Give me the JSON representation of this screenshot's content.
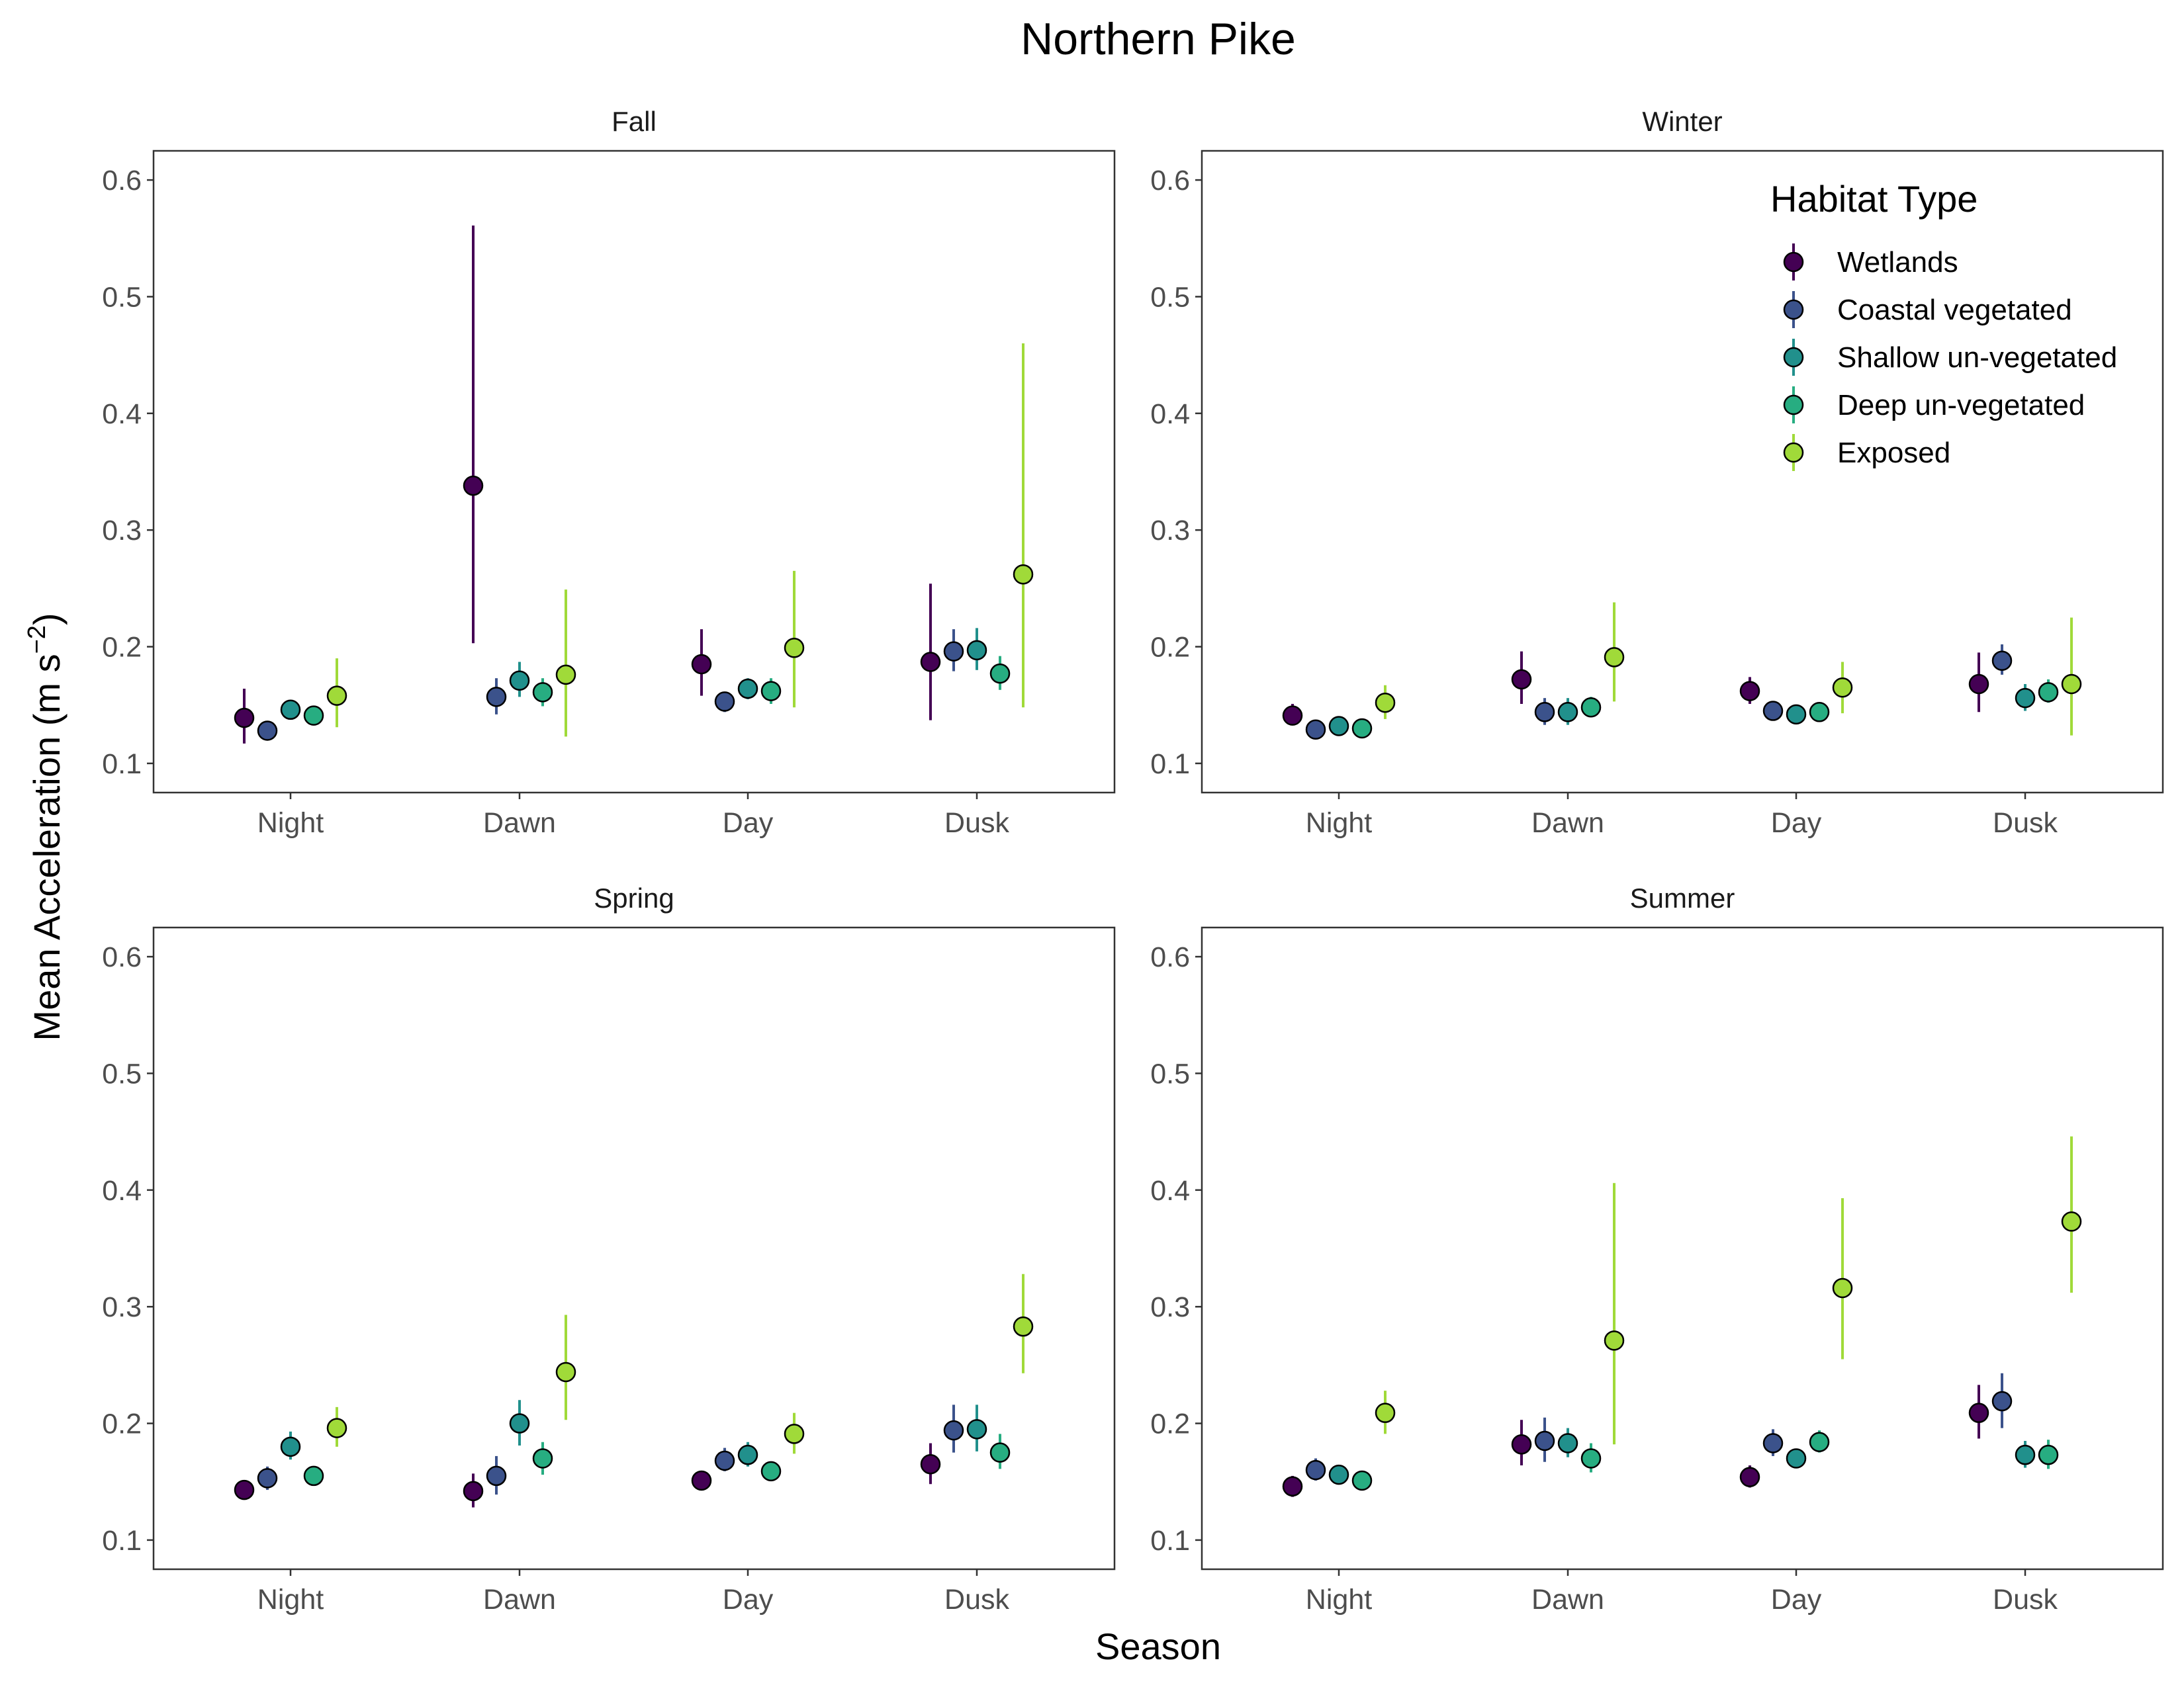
{
  "chart_data": {
    "type": "scatter",
    "title": "Northern Pike",
    "xlabel": "Season",
    "ylabel": "Mean Acceleration (m s",
    "ylabel_exponent": "−2",
    "ylabel_suffix": ")",
    "ylim": [
      0.075,
      0.625
    ],
    "yticks": [
      0.1,
      0.2,
      0.3,
      0.4,
      0.5,
      0.6
    ],
    "ytick_labels": [
      "0.1",
      "0.2",
      "0.3",
      "0.4",
      "0.5",
      "0.6"
    ],
    "categories": [
      "Night",
      "Dawn",
      "Day",
      "Dusk"
    ],
    "grid": false,
    "error_bars": true,
    "legend": {
      "title": "Habitat Type",
      "placement": "inside top-right of Winter panel",
      "entries": [
        "Wetlands",
        "Coastal vegetated",
        "Shallow un-vegetated",
        "Deep un-vegetated",
        "Exposed"
      ]
    },
    "colors": {
      "Wetlands": "#440154",
      "Coastal vegetated": "#3b528b",
      "Shallow un-vegetated": "#21908c",
      "Deep un-vegetated": "#27ad81",
      "Exposed": "#a0da39"
    },
    "panels": [
      {
        "title": "Fall",
        "series": [
          {
            "name": "Wetlands",
            "values": [
              0.139,
              0.338,
              0.185,
              0.187
            ],
            "lower": [
              0.117,
              0.203,
              0.158,
              0.137
            ],
            "upper": [
              0.164,
              0.561,
              0.215,
              0.254
            ]
          },
          {
            "name": "Coastal vegetated",
            "values": [
              0.128,
              0.157,
              0.153,
              0.196
            ],
            "lower": [
              0.124,
              0.142,
              0.144,
              0.179
            ],
            "upper": [
              0.133,
              0.173,
              0.161,
              0.215
            ]
          },
          {
            "name": "Shallow un-vegetated",
            "values": [
              0.146,
              0.171,
              0.164,
              0.197
            ],
            "lower": [
              0.14,
              0.157,
              0.155,
              0.18
            ],
            "upper": [
              0.152,
              0.187,
              0.173,
              0.216
            ]
          },
          {
            "name": "Deep un-vegetated",
            "values": [
              0.141,
              0.161,
              0.162,
              0.177
            ],
            "lower": [
              0.135,
              0.149,
              0.151,
              0.163
            ],
            "upper": [
              0.147,
              0.173,
              0.173,
              0.192
            ]
          },
          {
            "name": "Exposed",
            "values": [
              0.158,
              0.176,
              0.199,
              0.262
            ],
            "lower": [
              0.131,
              0.123,
              0.148,
              0.148
            ],
            "upper": [
              0.19,
              0.249,
              0.265,
              0.46
            ]
          }
        ]
      },
      {
        "title": "Winter",
        "series": [
          {
            "name": "Wetlands",
            "values": [
              0.141,
              0.172,
              0.162,
              0.168
            ],
            "lower": [
              0.133,
              0.151,
              0.151,
              0.144
            ],
            "upper": [
              0.151,
              0.196,
              0.174,
              0.195
            ]
          },
          {
            "name": "Coastal vegetated",
            "values": [
              0.129,
              0.144,
              0.145,
              0.188
            ],
            "lower": [
              0.125,
              0.133,
              0.14,
              0.176
            ],
            "upper": [
              0.133,
              0.156,
              0.15,
              0.202
            ]
          },
          {
            "name": "Shallow un-vegetated",
            "values": [
              0.132,
              0.144,
              0.142,
              0.156
            ],
            "lower": [
              0.127,
              0.133,
              0.137,
              0.145
            ],
            "upper": [
              0.137,
              0.156,
              0.147,
              0.168
            ]
          },
          {
            "name": "Deep un-vegetated",
            "values": [
              0.13,
              0.148,
              0.144,
              0.161
            ],
            "lower": [
              0.126,
              0.14,
              0.139,
              0.152
            ],
            "upper": [
              0.135,
              0.157,
              0.15,
              0.172
            ]
          },
          {
            "name": "Exposed",
            "values": [
              0.152,
              0.191,
              0.165,
              0.168
            ],
            "lower": [
              0.138,
              0.153,
              0.143,
              0.124
            ],
            "upper": [
              0.167,
              0.238,
              0.187,
              0.225
            ]
          }
        ]
      },
      {
        "title": "Spring",
        "series": [
          {
            "name": "Wetlands",
            "values": [
              0.143,
              0.142,
              0.151,
              0.165
            ],
            "lower": [
              0.135,
              0.128,
              0.144,
              0.148
            ],
            "upper": [
              0.151,
              0.157,
              0.158,
              0.183
            ]
          },
          {
            "name": "Coastal vegetated",
            "values": [
              0.153,
              0.155,
              0.168,
              0.194
            ],
            "lower": [
              0.143,
              0.139,
              0.159,
              0.175
            ],
            "upper": [
              0.163,
              0.172,
              0.179,
              0.216
            ]
          },
          {
            "name": "Shallow un-vegetated",
            "values": [
              0.18,
              0.2,
              0.173,
              0.195
            ],
            "lower": [
              0.169,
              0.181,
              0.163,
              0.176
            ],
            "upper": [
              0.193,
              0.22,
              0.184,
              0.216
            ]
          },
          {
            "name": "Deep un-vegetated",
            "values": [
              0.155,
              0.17,
              0.159,
              0.175
            ],
            "lower": [
              0.149,
              0.156,
              0.152,
              0.161
            ],
            "upper": [
              0.161,
              0.184,
              0.166,
              0.191
            ]
          },
          {
            "name": "Exposed",
            "values": [
              0.196,
              0.244,
              0.191,
              0.283
            ],
            "lower": [
              0.18,
              0.203,
              0.174,
              0.243
            ],
            "upper": [
              0.214,
              0.293,
              0.209,
              0.328
            ]
          }
        ]
      },
      {
        "title": "Summer",
        "series": [
          {
            "name": "Wetlands",
            "values": [
              0.146,
              0.182,
              0.154,
              0.209
            ],
            "lower": [
              0.137,
              0.164,
              0.145,
              0.187
            ],
            "upper": [
              0.155,
              0.203,
              0.164,
              0.233
            ]
          },
          {
            "name": "Coastal vegetated",
            "values": [
              0.16,
              0.185,
              0.183,
              0.219
            ],
            "lower": [
              0.151,
              0.167,
              0.172,
              0.196
            ],
            "upper": [
              0.17,
              0.205,
              0.195,
              0.243
            ]
          },
          {
            "name": "Shallow un-vegetated",
            "values": [
              0.156,
              0.183,
              0.17,
              0.173
            ],
            "lower": [
              0.15,
              0.171,
              0.163,
              0.162
            ],
            "upper": [
              0.162,
              0.196,
              0.178,
              0.185
            ]
          },
          {
            "name": "Deep un-vegetated",
            "values": [
              0.151,
              0.17,
              0.184,
              0.173
            ],
            "lower": [
              0.145,
              0.158,
              0.175,
              0.161
            ],
            "upper": [
              0.157,
              0.183,
              0.194,
              0.186
            ]
          },
          {
            "name": "Exposed",
            "values": [
              0.209,
              0.271,
              0.316,
              0.373
            ],
            "lower": [
              0.191,
              0.182,
              0.255,
              0.312
            ],
            "upper": [
              0.228,
              0.406,
              0.393,
              0.446
            ]
          }
        ]
      }
    ]
  }
}
